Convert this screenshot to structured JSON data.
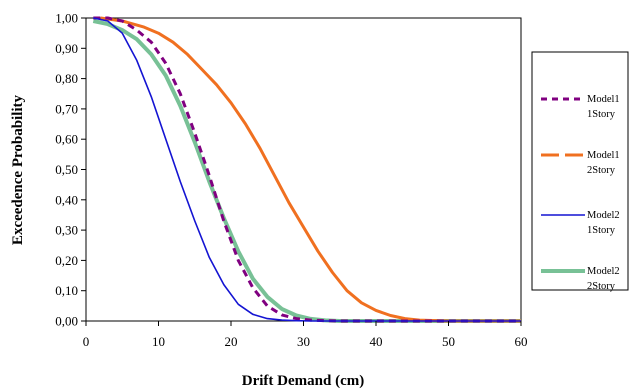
{
  "chart_data": {
    "type": "line",
    "title": "",
    "xlabel": "Drift Demand (cm)",
    "ylabel": "Exceedence Probability",
    "xlim": [
      0,
      60
    ],
    "ylim": [
      0,
      1
    ],
    "x_ticks": [
      "0",
      "10",
      "20",
      "30",
      "40",
      "50",
      "60"
    ],
    "y_ticks": [
      "0,00",
      "0,10",
      "0,20",
      "0,30",
      "0,40",
      "0,50",
      "0,60",
      "0,70",
      "0,80",
      "0,90",
      "1,00"
    ],
    "grid": false,
    "legend_position": "right",
    "series": [
      {
        "name_line1": "Model1",
        "name_line2": "1Story",
        "color": "#800080",
        "style": "dashed",
        "x": [
          1,
          3,
          5,
          7,
          9,
          11,
          13,
          15,
          17,
          19,
          21,
          23,
          25,
          27,
          29,
          31,
          33,
          35,
          60
        ],
        "y": [
          1.0,
          1.0,
          0.99,
          0.96,
          0.92,
          0.85,
          0.75,
          0.62,
          0.48,
          0.33,
          0.2,
          0.11,
          0.05,
          0.02,
          0.008,
          0.003,
          0.001,
          0.0,
          0.0
        ]
      },
      {
        "name_line1": "Model1",
        "name_line2": "2Story",
        "color": "#f07020",
        "style": "dashed",
        "x": [
          2,
          5,
          8,
          10,
          12,
          14,
          16,
          18,
          20,
          22,
          24,
          26,
          28,
          30,
          32,
          34,
          36,
          38,
          40,
          42,
          44,
          46,
          50,
          60
        ],
        "y": [
          1.0,
          0.99,
          0.97,
          0.95,
          0.92,
          0.88,
          0.83,
          0.78,
          0.72,
          0.65,
          0.57,
          0.48,
          0.39,
          0.31,
          0.23,
          0.16,
          0.1,
          0.06,
          0.035,
          0.018,
          0.008,
          0.003,
          0.0,
          0.0
        ]
      },
      {
        "name_line1": "Model2",
        "name_line2": "1Story",
        "color": "#1414d2",
        "style": "solid",
        "x": [
          1,
          3,
          5,
          7,
          9,
          11,
          13,
          15,
          17,
          19,
          21,
          23,
          25,
          27,
          29,
          31,
          60
        ],
        "y": [
          1.0,
          0.99,
          0.95,
          0.86,
          0.74,
          0.6,
          0.46,
          0.33,
          0.21,
          0.12,
          0.055,
          0.022,
          0.008,
          0.003,
          0.001,
          0.0,
          0.0
        ]
      },
      {
        "name_line1": "Model2",
        "name_line2": "2Story",
        "color": "#78c196",
        "style": "solid",
        "x": [
          1,
          3,
          5,
          7,
          9,
          11,
          13,
          15,
          17,
          19,
          21,
          23,
          25,
          27,
          29,
          31,
          33,
          35,
          60
        ],
        "y": [
          0.99,
          0.98,
          0.96,
          0.93,
          0.88,
          0.81,
          0.71,
          0.59,
          0.46,
          0.34,
          0.23,
          0.14,
          0.08,
          0.04,
          0.018,
          0.007,
          0.002,
          0.0,
          0.0
        ]
      }
    ]
  }
}
